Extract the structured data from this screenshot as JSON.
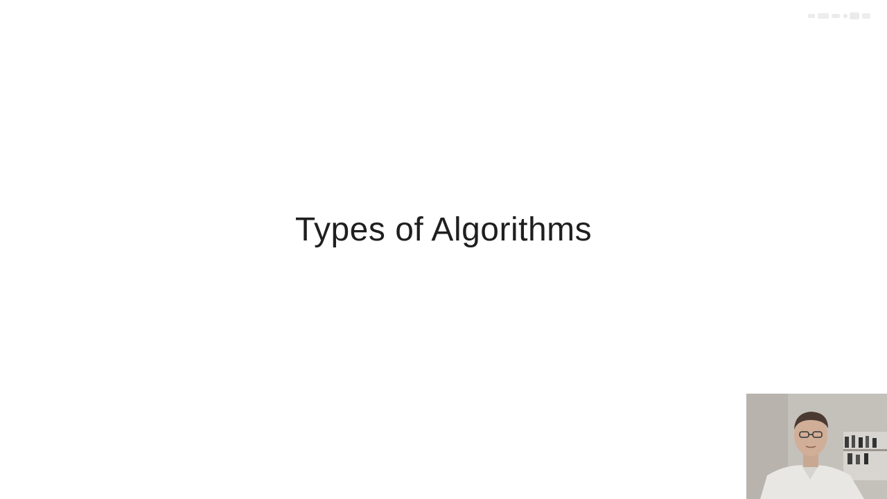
{
  "slide": {
    "title": "Types of Algorithms"
  },
  "webcam": {
    "icon": "presenter-video-icon"
  },
  "watermark": {
    "icon": "watermark-logo-icon"
  },
  "colors": {
    "background": "#ffffff",
    "title_text": "#1f1f1f"
  }
}
